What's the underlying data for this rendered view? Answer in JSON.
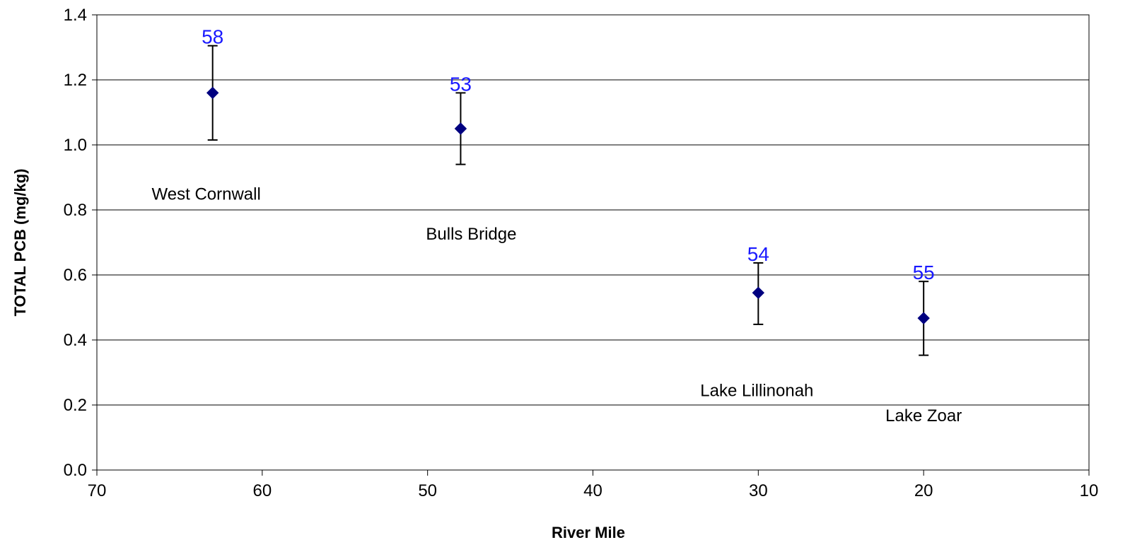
{
  "chart_data": {
    "type": "scatter",
    "title": "",
    "xlabel": "River Mile",
    "ylabel": "TOTAL PCB (mg/kg)",
    "xlim": [
      70,
      10
    ],
    "ylim": [
      0.0,
      1.4
    ],
    "x_axis_reversed": true,
    "x_ticks": [
      70,
      60,
      50,
      40,
      30,
      20,
      10
    ],
    "y_ticks": [
      "0.0",
      "0.2",
      "0.4",
      "0.6",
      "0.8",
      "1.0",
      "1.2",
      "1.4"
    ],
    "grid": "horizontal",
    "legend": "none",
    "marker": "diamond",
    "colors": {
      "marker": "#000080",
      "count_label": "#1a1aff",
      "error_bar": "#000000",
      "gridline": "#000000"
    },
    "points": [
      {
        "site": "West Cornwall",
        "x": 63,
        "y": 1.16,
        "y_low": 1.015,
        "y_high": 1.305,
        "n": "58"
      },
      {
        "site": "Bulls Bridge",
        "x": 48,
        "y": 1.05,
        "y_low": 0.94,
        "y_high": 1.16,
        "n": "53"
      },
      {
        "site": "Lake Lillinonah",
        "x": 30,
        "y": 0.545,
        "y_low": 0.448,
        "y_high": 0.637,
        "n": "54"
      },
      {
        "site": "Lake Zoar",
        "x": 20,
        "y": 0.467,
        "y_low": 0.353,
        "y_high": 0.58,
        "n": "55"
      }
    ]
  }
}
